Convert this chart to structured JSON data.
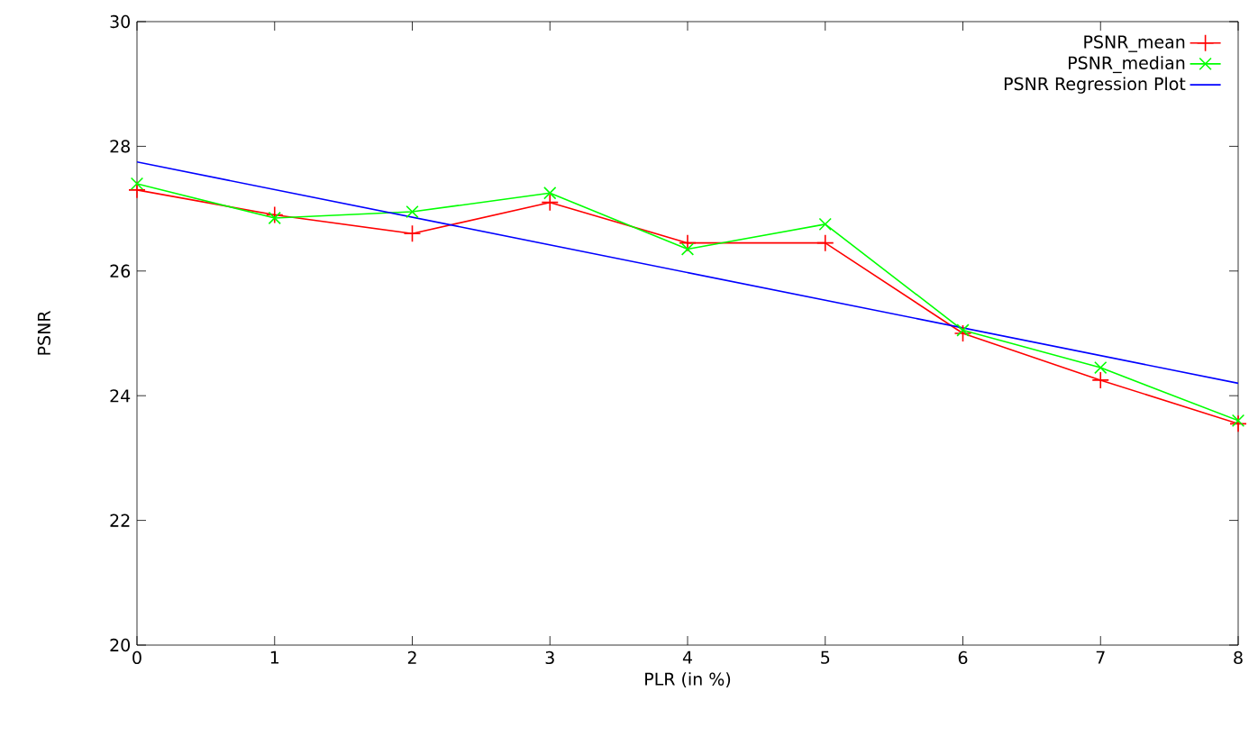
{
  "chart_data": {
    "type": "line",
    "xlabel": "PLR (in %)",
    "ylabel": "PSNR",
    "xlim": [
      0,
      8
    ],
    "xticks": [
      0,
      1,
      2,
      3,
      4,
      5,
      6,
      7,
      8
    ],
    "ylim": [
      20,
      30
    ],
    "yticks": [
      20,
      22,
      24,
      26,
      28,
      30
    ],
    "x": [
      0,
      1,
      2,
      3,
      4,
      5,
      6,
      7,
      8
    ],
    "grid": false,
    "legend": "top right",
    "series": [
      {
        "name": "PSNR_mean",
        "color": "#ff0000",
        "marker": "plus",
        "values": [
          27.3,
          26.9,
          26.6,
          27.1,
          26.45,
          26.45,
          25.0,
          24.25,
          23.55
        ]
      },
      {
        "name": "PSNR_median",
        "color": "#00ff00",
        "marker": "cross",
        "values": [
          27.4,
          26.85,
          26.95,
          27.25,
          26.35,
          26.75,
          25.05,
          24.45,
          23.6
        ]
      },
      {
        "name": "PSNR Regression Plot",
        "color": "#0000ff",
        "marker": "none",
        "x": [
          0,
          8
        ],
        "values": [
          27.75,
          24.2
        ]
      }
    ]
  }
}
